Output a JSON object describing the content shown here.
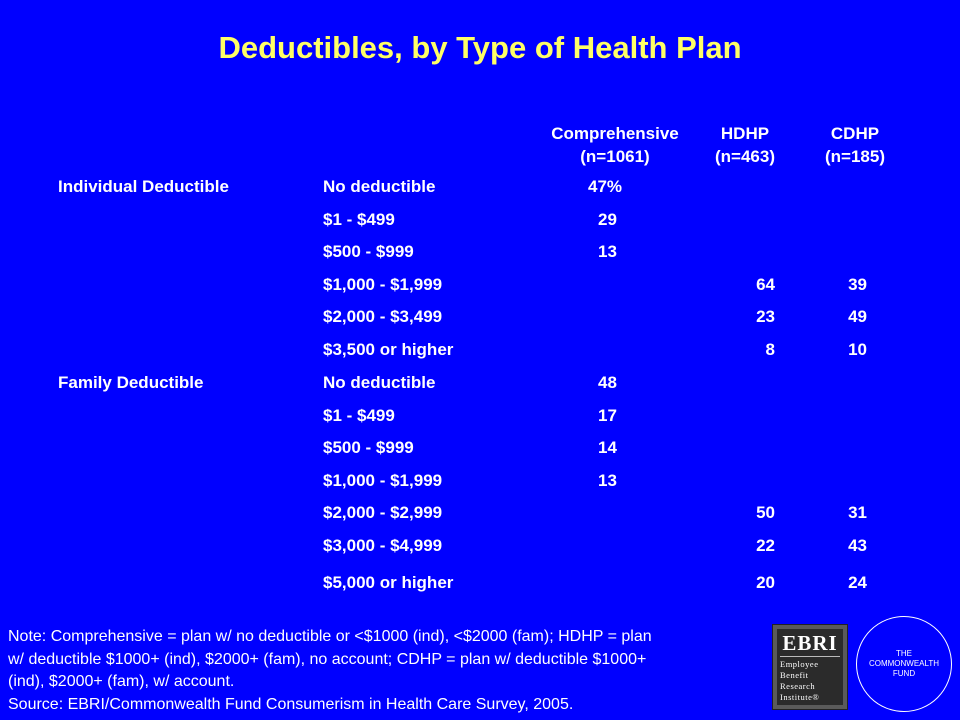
{
  "title": "Deductibles, by Type of Health Plan",
  "columns": [
    {
      "name": "Comprehensive",
      "n": "(n=1061)"
    },
    {
      "name": "HDHP",
      "n": "(n=463)"
    },
    {
      "name": "CDHP",
      "n": "(n=185)"
    }
  ],
  "groups": [
    {
      "label": "Individual Deductible",
      "rows": [
        {
          "range": "No deductible",
          "comp": "47%",
          "hdhp": "",
          "cdhp": ""
        },
        {
          "range": "$1 - $499",
          "comp": "29",
          "hdhp": "",
          "cdhp": ""
        },
        {
          "range": "$500 - $999",
          "comp": "13",
          "hdhp": "",
          "cdhp": ""
        },
        {
          "range": "$1,000 - $1,999",
          "comp": "",
          "hdhp": "64",
          "cdhp": "39"
        },
        {
          "range": "$2,000 - $3,499",
          "comp": "",
          "hdhp": "23",
          "cdhp": "49"
        },
        {
          "range": "$3,500 or higher",
          "comp": "",
          "hdhp": "8",
          "cdhp": "10"
        }
      ]
    },
    {
      "label": "Family Deductible",
      "rows": [
        {
          "range": "No deductible",
          "comp": "48",
          "hdhp": "",
          "cdhp": ""
        },
        {
          "range": "$1 - $499",
          "comp": "17",
          "hdhp": "",
          "cdhp": ""
        },
        {
          "range": "$500 - $999",
          "comp": "14",
          "hdhp": "",
          "cdhp": ""
        },
        {
          "range": "$1,000 - $1,999",
          "comp": "13",
          "hdhp": "",
          "cdhp": ""
        },
        {
          "range": "$2,000 - $2,999",
          "comp": "",
          "hdhp": "50",
          "cdhp": "31"
        },
        {
          "range": "$3,000 - $4,999",
          "comp": "",
          "hdhp": "22",
          "cdhp": "43"
        },
        {
          "range": "$5,000 or higher",
          "comp": "",
          "hdhp": "20",
          "cdhp": "24"
        }
      ]
    }
  ],
  "note": {
    "line1": "Note: Comprehensive = plan w/ no deductible or <$1000 (ind), <$2000 (fam); HDHP = plan",
    "line2": "w/ deductible $1000+ (ind), $2000+ (fam), no account; CDHP = plan w/ deductible $1000+",
    "line3": "(ind), $2000+ (fam), w/ account.",
    "source": "Source: EBRI/Commonwealth Fund Consumerism in Health Care Survey, 2005."
  },
  "logos": {
    "ebri": {
      "abbr": "EBRI",
      "line1": "Employee",
      "line2": "Benefit",
      "line3": "Research",
      "line4": "Institute",
      "mark": "®"
    },
    "cwf": {
      "line1": "THE",
      "line2": "COMMONWEALTH",
      "line3": "FUND"
    }
  },
  "colors": {
    "background": "#0000FF",
    "title": "#FFFF66",
    "text": "#FFFFFF"
  }
}
